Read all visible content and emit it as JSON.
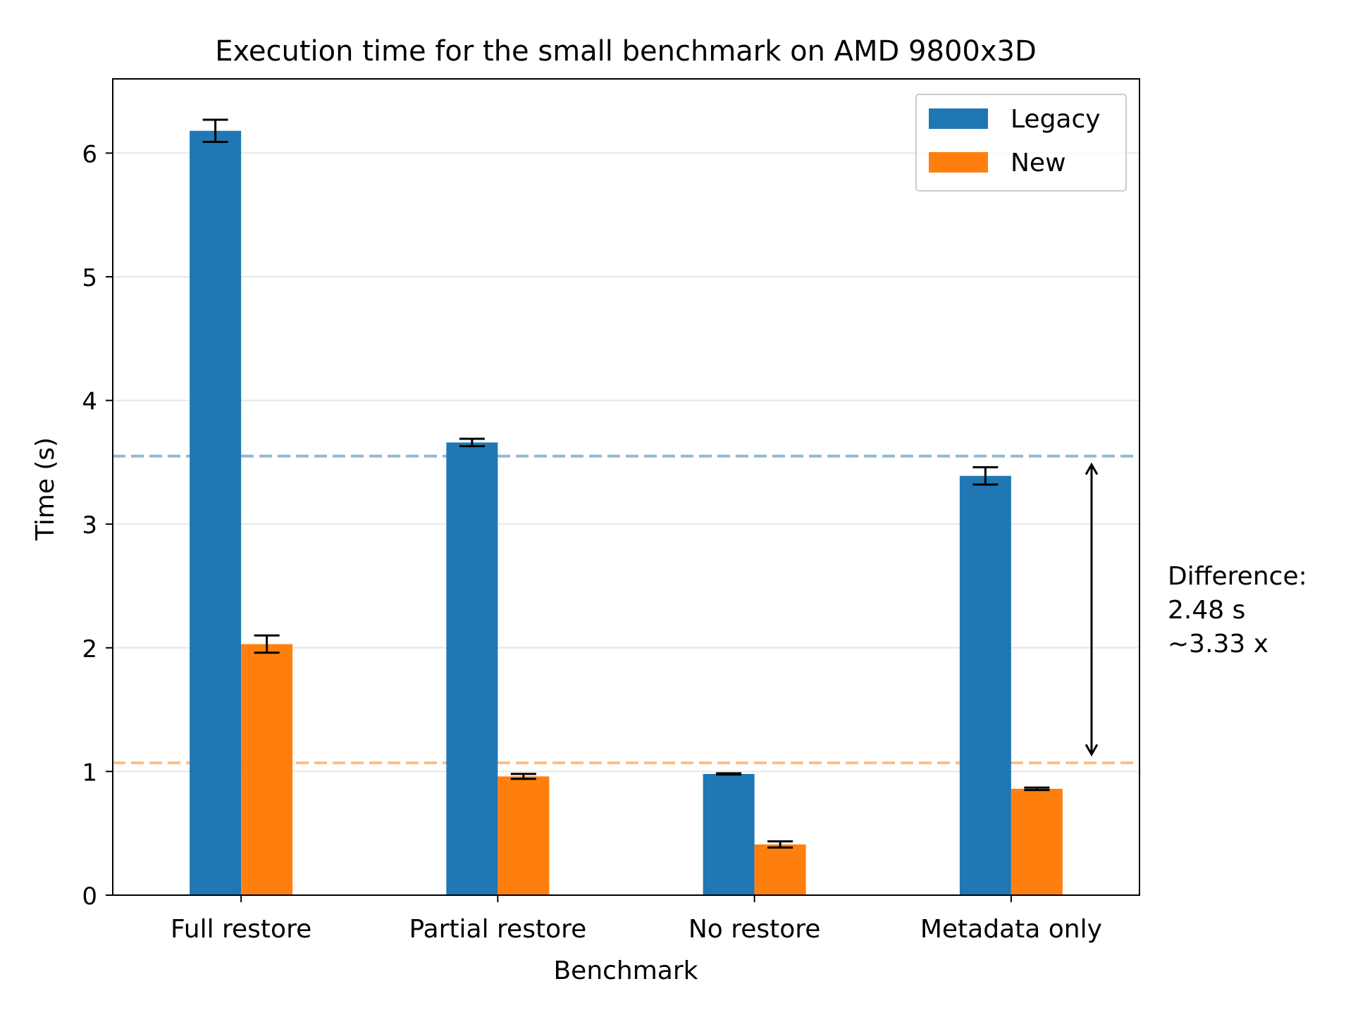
{
  "chart_data": {
    "type": "bar",
    "title": "Execution time for the small benchmark on AMD 9800x3D",
    "xlabel": "Benchmark",
    "ylabel": "Time (s)",
    "ylim": [
      0,
      6.6
    ],
    "yticks": [
      0,
      1,
      2,
      3,
      4,
      5,
      6
    ],
    "grid": "horizontal",
    "legend_position": "top-right",
    "categories": [
      "Full restore",
      "Partial restore",
      "No restore",
      "Metadata only"
    ],
    "series": [
      {
        "name": "Legacy",
        "color": "#1f77b4",
        "values": [
          6.18,
          3.66,
          0.98,
          3.39
        ],
        "errors": [
          0.09,
          0.03,
          0.005,
          0.07
        ]
      },
      {
        "name": "New",
        "color": "#ff7f0e",
        "values": [
          2.03,
          0.96,
          0.41,
          0.86
        ],
        "errors": [
          0.07,
          0.02,
          0.025,
          0.01
        ]
      }
    ],
    "reference_lines": [
      {
        "series": "Legacy",
        "value": 3.55,
        "color": "#1f77b4",
        "style": "dashed"
      },
      {
        "series": "New",
        "value": 1.07,
        "color": "#ff7f0e",
        "style": "dashed"
      }
    ],
    "annotation": {
      "arrow_from": 1.07,
      "arrow_to": 3.55,
      "lines": [
        "Difference:",
        "2.48 s",
        "~3.33 x"
      ]
    }
  }
}
